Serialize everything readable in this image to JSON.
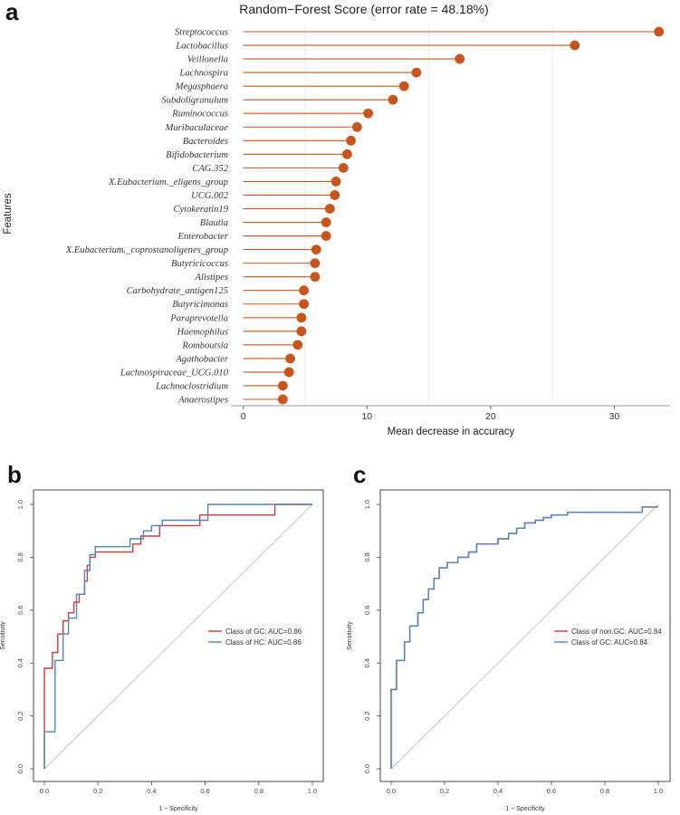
{
  "panels": {
    "a": "a",
    "b": "b",
    "c": "c"
  },
  "chart_data": [
    {
      "type": "scatter",
      "subtype": "lollipop",
      "title": "Random−Forest Score (error rate = 48.18%)",
      "xlabel": "Mean decrease in accuracy",
      "ylabel": "Features",
      "xlim": [
        -1,
        34.5
      ],
      "xticks": [
        0,
        10,
        20,
        30
      ],
      "grid_x": [
        5,
        15,
        25
      ],
      "color": "#c7551d",
      "categories": [
        "Streptococcus",
        "Lactobacillus",
        "Veillonella",
        "Lachnospira",
        "Megasphaera",
        "Subdoligranulum",
        "Ruminococcus",
        "Muribaculaceae",
        "Bacteroides",
        "Bifidobacterium",
        "CAG.352",
        "X.Eubacterium._eligens_group",
        "UCG.002",
        "Cytokeratin19",
        "Blautia",
        "Enterobacter",
        "X.Eubacterium._coprostanoligenes_group",
        "Butyricicoccus",
        "Alistipes",
        "Carbohydrate_antigen125",
        "Butyricimonas",
        "Paraprevotella",
        "Haemophilus",
        "Romboutsia",
        "Agathobacter",
        "Lachnospiraceae_UCG.010",
        "Lachnoclostridium",
        "Anaerostipes"
      ],
      "values": [
        33.6,
        26.8,
        17.5,
        14.0,
        13.0,
        12.1,
        10.1,
        9.2,
        8.7,
        8.4,
        8.1,
        7.5,
        7.4,
        7.0,
        6.7,
        6.7,
        5.9,
        5.8,
        5.8,
        4.9,
        4.9,
        4.7,
        4.7,
        4.4,
        3.8,
        3.7,
        3.2,
        3.2
      ]
    },
    {
      "type": "line",
      "subtype": "roc",
      "xlabel": "1 − Specificity",
      "ylabel": "Sensitivity",
      "xlim": [
        0,
        1
      ],
      "ylim": [
        0,
        1
      ],
      "xticks": [
        "0.0",
        "0.2",
        "0.4",
        "0.6",
        "0.8",
        "1.0"
      ],
      "yticks": [
        "0.0",
        "0.2",
        "0.4",
        "0.6",
        "0.8",
        "1.0"
      ],
      "legend_position": "right",
      "series": [
        {
          "name": "Class of GC: AUC=0.86",
          "color": "#cf3a3a",
          "x": [
            0,
            0,
            0.03,
            0.03,
            0.05,
            0.05,
            0.07,
            0.07,
            0.09,
            0.09,
            0.11,
            0.11,
            0.13,
            0.13,
            0.15,
            0.15,
            0.16,
            0.16,
            0.17,
            0.17,
            0.19,
            0.19,
            0.33,
            0.33,
            0.36,
            0.36,
            0.43,
            0.43,
            0.58,
            0.58,
            0.86,
            0.86,
            1.0
          ],
          "y": [
            0,
            0.38,
            0.38,
            0.44,
            0.44,
            0.51,
            0.51,
            0.56,
            0.56,
            0.59,
            0.59,
            0.63,
            0.63,
            0.66,
            0.66,
            0.71,
            0.71,
            0.77,
            0.77,
            0.8,
            0.8,
            0.82,
            0.82,
            0.85,
            0.85,
            0.88,
            0.88,
            0.92,
            0.92,
            0.96,
            0.96,
            1.0,
            1.0
          ]
        },
        {
          "name": "Class of HC: AUC=0.86",
          "color": "#4f86b8",
          "x": [
            0,
            0,
            0.04,
            0.04,
            0.07,
            0.07,
            0.09,
            0.09,
            0.12,
            0.12,
            0.15,
            0.15,
            0.17,
            0.17,
            0.19,
            0.19,
            0.32,
            0.32,
            0.37,
            0.37,
            0.4,
            0.4,
            0.44,
            0.44,
            0.61,
            0.61,
            1.0
          ],
          "y": [
            0,
            0.14,
            0.14,
            0.41,
            0.41,
            0.51,
            0.51,
            0.57,
            0.57,
            0.66,
            0.66,
            0.75,
            0.75,
            0.81,
            0.81,
            0.84,
            0.84,
            0.87,
            0.87,
            0.9,
            0.9,
            0.92,
            0.92,
            0.94,
            0.94,
            1.0,
            1.0
          ]
        }
      ]
    },
    {
      "type": "line",
      "subtype": "roc",
      "xlabel": "1 − Specificity",
      "ylabel": "Sensitivity",
      "xlim": [
        0,
        1
      ],
      "ylim": [
        0,
        1
      ],
      "xticks": [
        "0.0",
        "0.2",
        "0.4",
        "0.6",
        "0.8",
        "1.0"
      ],
      "yticks": [
        "0.0",
        "0.2",
        "0.4",
        "0.6",
        "0.8",
        "1.0"
      ],
      "legend_position": "right",
      "series": [
        {
          "name": "Class of non.GC: AUC=0.84",
          "color": "#cf3a3a",
          "x": [
            0,
            0,
            0.02,
            0.02,
            0.05,
            0.05,
            0.07,
            0.07,
            0.1,
            0.1,
            0.12,
            0.12,
            0.14,
            0.14,
            0.16,
            0.16,
            0.18,
            0.18,
            0.21,
            0.21,
            0.25,
            0.25,
            0.29,
            0.29,
            0.32,
            0.32,
            0.4,
            0.4,
            0.44,
            0.44,
            0.47,
            0.47,
            0.5,
            0.5,
            0.54,
            0.54,
            0.57,
            0.57,
            0.6,
            0.6,
            0.66,
            0.66,
            0.94,
            0.94,
            1.0
          ],
          "y": [
            0,
            0.3,
            0.3,
            0.41,
            0.41,
            0.48,
            0.48,
            0.54,
            0.54,
            0.59,
            0.59,
            0.64,
            0.64,
            0.68,
            0.68,
            0.72,
            0.72,
            0.76,
            0.76,
            0.78,
            0.78,
            0.8,
            0.8,
            0.82,
            0.82,
            0.85,
            0.85,
            0.87,
            0.87,
            0.89,
            0.89,
            0.91,
            0.91,
            0.93,
            0.93,
            0.94,
            0.94,
            0.95,
            0.95,
            0.96,
            0.96,
            0.97,
            0.97,
            0.99,
            0.99
          ]
        },
        {
          "name": "Class of GC: AUC=0.84",
          "color": "#4f86b8",
          "x": [
            0,
            0,
            0.02,
            0.02,
            0.05,
            0.05,
            0.07,
            0.07,
            0.1,
            0.1,
            0.12,
            0.12,
            0.14,
            0.14,
            0.16,
            0.16,
            0.18,
            0.18,
            0.21,
            0.21,
            0.25,
            0.25,
            0.29,
            0.29,
            0.32,
            0.32,
            0.4,
            0.4,
            0.44,
            0.44,
            0.47,
            0.47,
            0.5,
            0.5,
            0.54,
            0.54,
            0.57,
            0.57,
            0.6,
            0.6,
            0.66,
            0.66,
            0.94,
            0.94,
            1.0
          ],
          "y": [
            0,
            0.3,
            0.3,
            0.41,
            0.41,
            0.48,
            0.48,
            0.54,
            0.54,
            0.59,
            0.59,
            0.64,
            0.64,
            0.68,
            0.68,
            0.72,
            0.72,
            0.76,
            0.76,
            0.78,
            0.78,
            0.8,
            0.8,
            0.82,
            0.82,
            0.85,
            0.85,
            0.87,
            0.87,
            0.89,
            0.89,
            0.91,
            0.91,
            0.93,
            0.93,
            0.94,
            0.94,
            0.95,
            0.95,
            0.96,
            0.96,
            0.97,
            0.97,
            0.99,
            0.99
          ]
        }
      ]
    }
  ]
}
